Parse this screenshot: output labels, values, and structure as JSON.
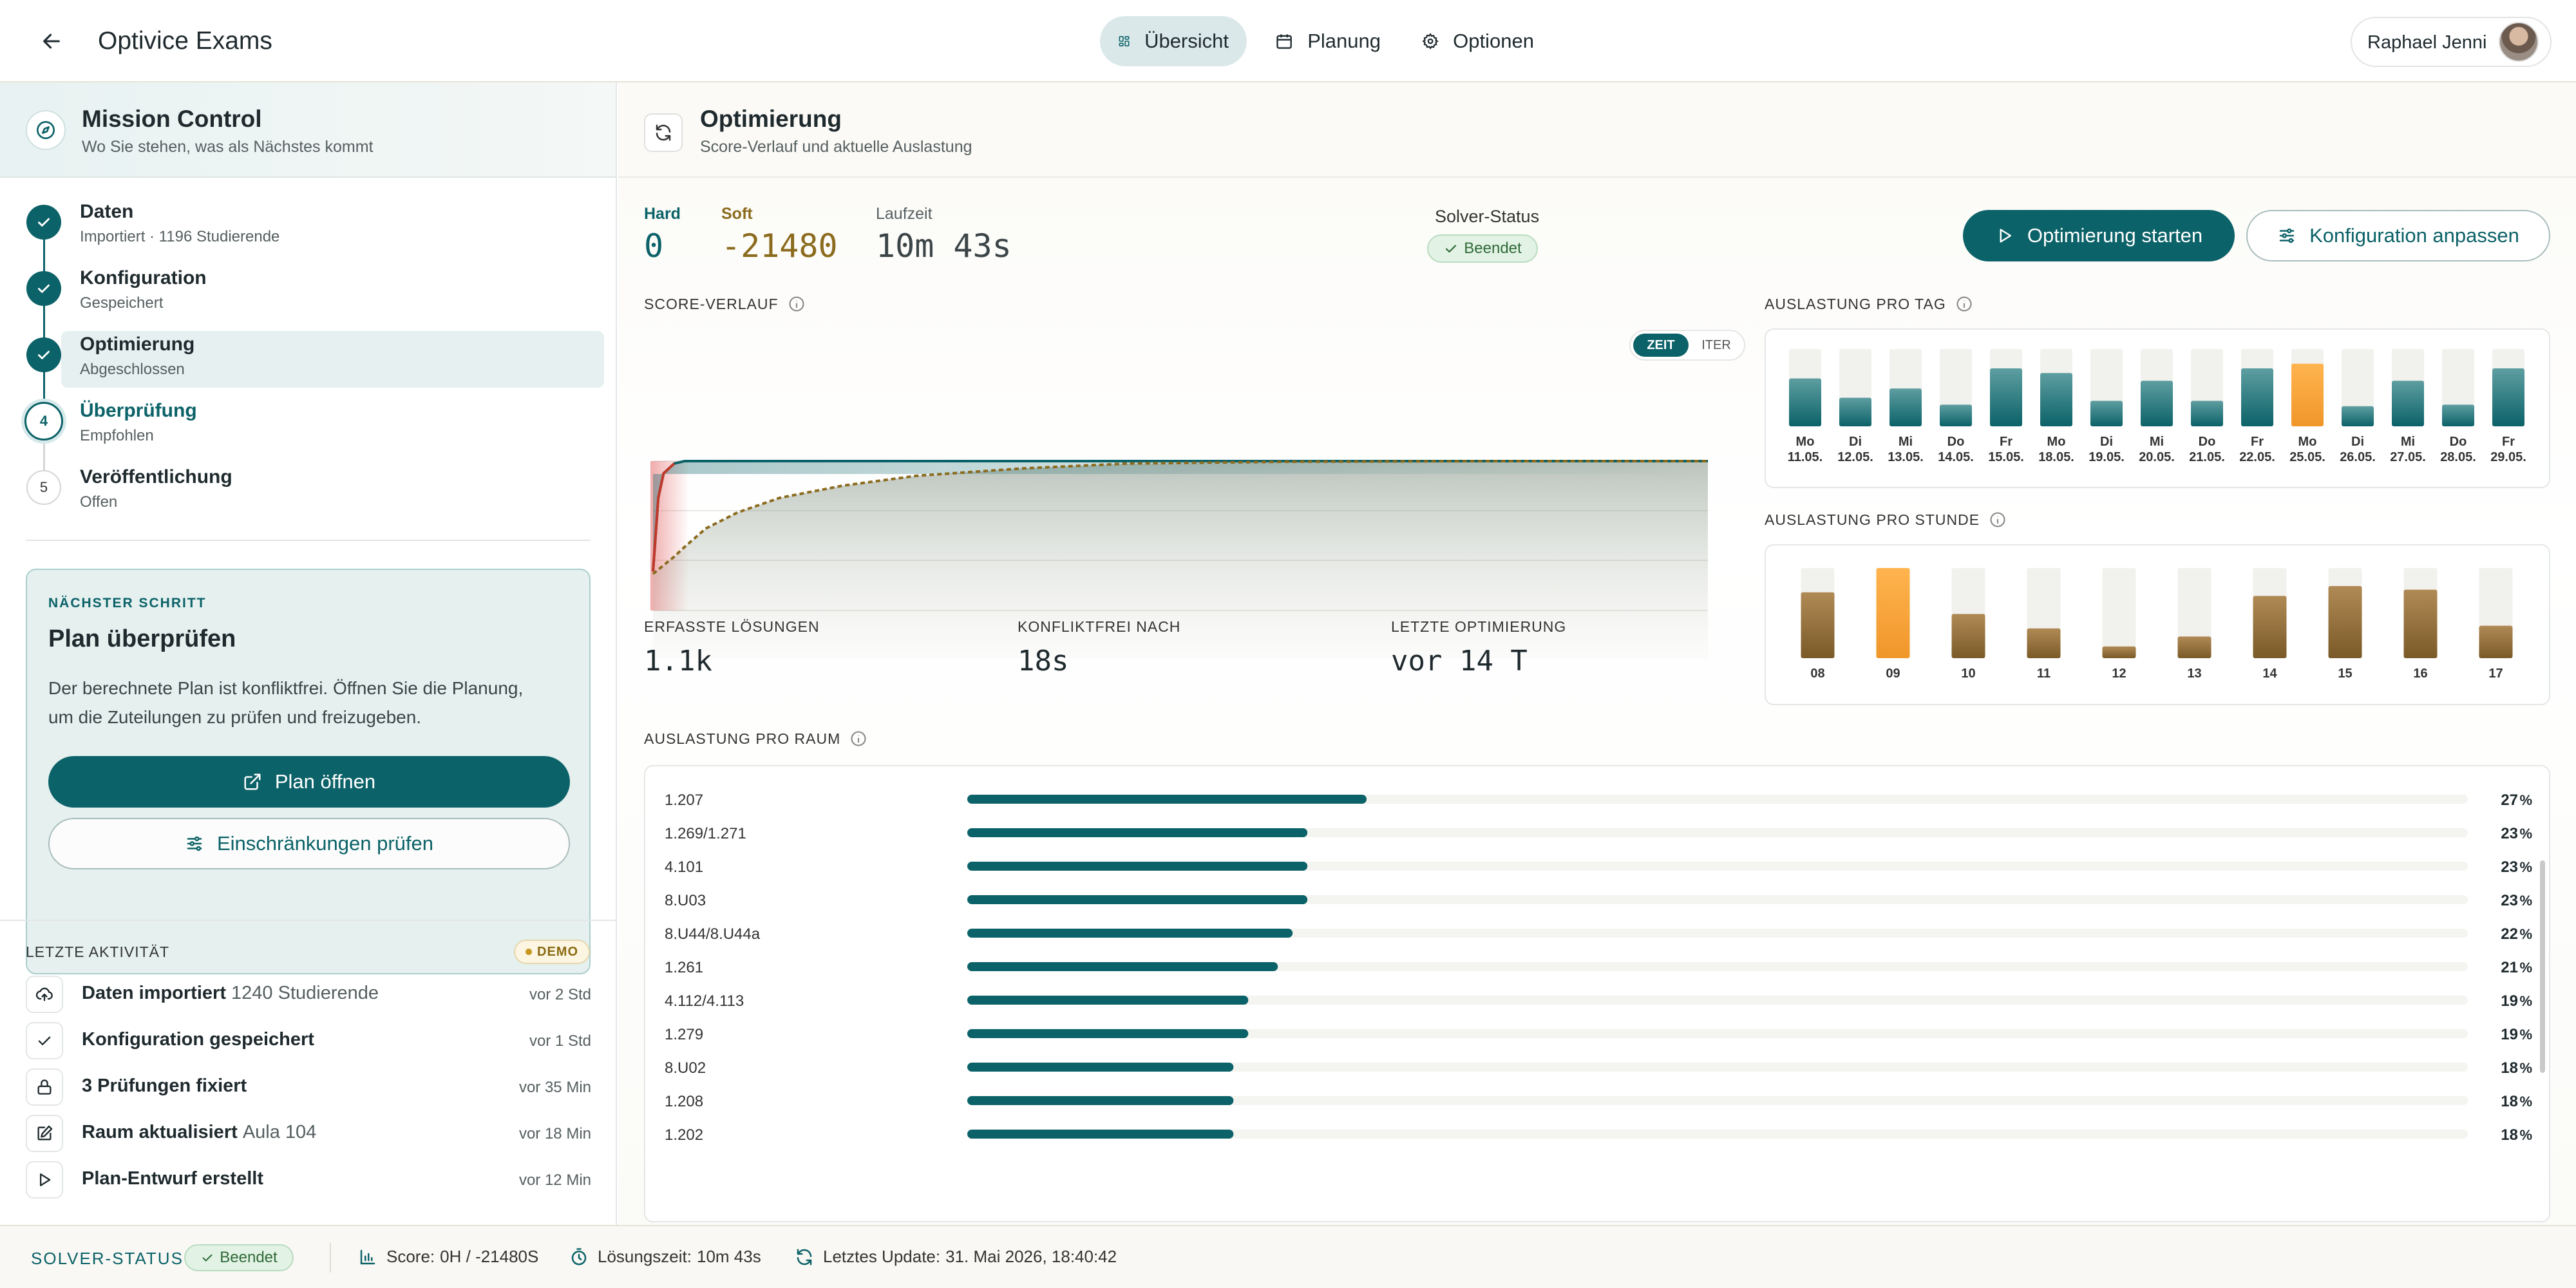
{
  "header": {
    "app_title": "Optivice Exams",
    "tabs": [
      {
        "label": "Übersicht",
        "icon": "dashboard-icon",
        "active": true
      },
      {
        "label": "Planung",
        "icon": "calendar-icon",
        "active": false
      },
      {
        "label": "Optionen",
        "icon": "gear-icon",
        "active": false
      }
    ],
    "user_name": "Raphael Jenni"
  },
  "sidebar": {
    "title": "Mission Control",
    "subtitle": "Wo Sie stehen, was als Nächstes kommt",
    "steps": [
      {
        "title": "Daten",
        "subtitle": "Importiert · 1196 Studierende",
        "state": "done",
        "marker": ""
      },
      {
        "title": "Konfiguration",
        "subtitle": "Gespeichert",
        "state": "done",
        "marker": ""
      },
      {
        "title": "Optimierung",
        "subtitle": "Abgeschlossen",
        "state": "done",
        "marker": ""
      },
      {
        "title": "Überprüfung",
        "subtitle": "Empfohlen",
        "state": "current",
        "marker": "4"
      },
      {
        "title": "Veröffentlichung",
        "subtitle": "Offen",
        "state": "open",
        "marker": "5"
      }
    ],
    "next_step": {
      "eyebrow": "NÄCHSTER SCHRITT",
      "title": "Plan überprüfen",
      "text_line1": "Der berechnete Plan ist konfliktfrei. Öffnen Sie die Planung,",
      "text_line2": "um die Zuteilungen zu prüfen und freizugeben.",
      "primary_button": "Plan öffnen",
      "secondary_button": "Einschränkungen prüfen"
    },
    "activity": {
      "title": "LETZTE AKTIVITÄT",
      "badge": "DEMO",
      "items": [
        {
          "icon": "upload-icon",
          "title": "Daten importiert",
          "detail": "1240 Studierende",
          "time": "vor 2 Std"
        },
        {
          "icon": "check-icon",
          "title": "Konfiguration gespeichert",
          "detail": "",
          "time": "vor 1 Std"
        },
        {
          "icon": "lock-icon",
          "title": "3 Prüfungen fixiert",
          "detail": "",
          "time": "vor 35 Min"
        },
        {
          "icon": "edit-icon",
          "title": "Raum aktualisiert",
          "detail": "Aula 104",
          "time": "vor 18 Min"
        },
        {
          "icon": "play-icon",
          "title": "Plan-Entwurf erstellt",
          "detail": "",
          "time": "vor 12 Min"
        }
      ]
    }
  },
  "main": {
    "title": "Optimierung",
    "subtitle": "Score-Verlauf und aktuelle Auslastung",
    "hard_label": "Hard",
    "hard_value": "0",
    "soft_label": "Soft",
    "soft_value": "-21480",
    "runtime_label": "Laufzeit",
    "runtime_value": "10m 43s",
    "solver_label": "Solver-Status",
    "solver_value": "Beendet",
    "start_button": "Optimierung starten",
    "config_button": "Konfiguration anpassen",
    "score_section": "SCORE-VERLAUF",
    "toggle_time": "ZEIT",
    "toggle_iter": "ITER",
    "stats": [
      {
        "label": "ERFASSTE LÖSUNGEN",
        "value": "1.1k"
      },
      {
        "label": "KONFLIKTFREI NACH",
        "value": "18s"
      },
      {
        "label": "LETZTE OPTIMIERUNG",
        "value": "vor 14 T"
      }
    ],
    "day_section": "AUSLASTUNG PRO TAG",
    "hour_section": "AUSLASTUNG PRO STUNDE",
    "room_section": "AUSLASTUNG PRO RAUM"
  },
  "colors": {
    "accent": "#0b6268",
    "highlight": "#f5a33b",
    "bronze": "#8a6530",
    "hard_line": "#0b6268",
    "soft_line": "#8b6b1e",
    "early_line": "#c0392b"
  },
  "chart_data": [
    {
      "type": "line",
      "title": "SCORE-VERLAUF",
      "series": [
        {
          "name": "Hard",
          "x": [
            0,
            0.005,
            0.01,
            0.02,
            0.03,
            1
          ],
          "values": [
            -0.9,
            -0.3,
            -0.1,
            -0.02,
            0,
            0
          ]
        },
        {
          "name": "Soft",
          "x": [
            0,
            0.01,
            0.02,
            0.03,
            0.05,
            0.08,
            0.12,
            0.18,
            0.25,
            0.35,
            0.45,
            0.6,
            0.8,
            1
          ],
          "values": [
            -0.92,
            -0.85,
            -0.78,
            -0.7,
            -0.55,
            -0.42,
            -0.3,
            -0.2,
            -0.12,
            -0.06,
            -0.02,
            -0.005,
            0,
            0
          ]
        }
      ],
      "grid": true
    },
    {
      "type": "bar",
      "title": "AUSLASTUNG PRO TAG",
      "categories": [
        "Mo 11.05.",
        "Di 12.05.",
        "Mi 13.05.",
        "Do 14.05.",
        "Fr 15.05.",
        "Mo 18.05.",
        "Di 19.05.",
        "Mi 20.05.",
        "Do 21.05.",
        "Fr 22.05.",
        "Mo 25.05.",
        "Di 26.05.",
        "Mi 27.05.",
        "Do 28.05.",
        "Fr 29.05."
      ],
      "values": [
        62,
        37,
        49,
        28,
        75,
        69,
        33,
        59,
        33,
        75,
        81,
        26,
        59,
        28,
        75
      ],
      "ylim": [
        0,
        100
      ],
      "highlight_index": 10
    },
    {
      "type": "bar",
      "title": "AUSLASTUNG PRO STUNDE",
      "categories": [
        "08",
        "09",
        "10",
        "11",
        "12",
        "13",
        "14",
        "15",
        "16",
        "17"
      ],
      "values": [
        73,
        100,
        49,
        33,
        13,
        24,
        69,
        80,
        76,
        36
      ],
      "ylim": [
        0,
        100
      ],
      "highlight_index": 1
    },
    {
      "type": "bar",
      "title": "AUSLASTUNG PRO RAUM",
      "categories": [
        "1.207",
        "1.269/1.271",
        "4.101",
        "8.U03",
        "8.U44/8.U44a",
        "1.261",
        "4.112/4.113",
        "1.279",
        "8.U02",
        "1.208",
        "1.202"
      ],
      "values": [
        27,
        23,
        23,
        23,
        22,
        21,
        19,
        19,
        18,
        18,
        18
      ],
      "xlabel": "",
      "ylabel": "",
      "unit": "%",
      "ylim": [
        0,
        100
      ]
    }
  ],
  "footer": {
    "solver_label": "SOLVER-STATUS",
    "solver_value": "Beendet",
    "score_label": "Score:",
    "score_value": "0H / -21480S",
    "time_label": "Lösungszeit:",
    "time_value": "10m 43s",
    "update_label": "Letztes Update:",
    "update_value": "31. Mai 2026, 18:40:42"
  }
}
